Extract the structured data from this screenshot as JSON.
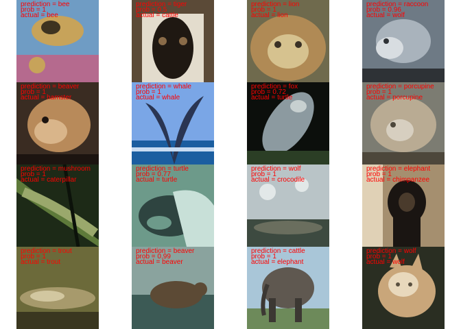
{
  "panels": [
    {
      "prediction": "prediction = bee",
      "prob": "prob = 1",
      "actual": "actual = bee",
      "subject": "bee on flowers",
      "colors": {
        "bg": "#6f9cc4",
        "a": "#c7a35a",
        "b": "#3e3320",
        "c": "#b56a8e"
      }
    },
    {
      "prediction": "prediction = tiger",
      "prob": "prob = 0.5",
      "actual": "actual = cattle",
      "subject": "cattle",
      "colors": {
        "bg": "#5b4a37",
        "a": "#e3dccd",
        "b": "#1f1812",
        "c": "#8a6b48"
      }
    },
    {
      "prediction": "prediction = lion",
      "prob": "prob = 1",
      "actual": "actual = lion",
      "subject": "lion",
      "colors": {
        "bg": "#6f6a4d",
        "a": "#b08a55",
        "b": "#3a3125",
        "c": "#d6c28f"
      }
    },
    {
      "prediction": "prediction = raccoon",
      "prob": "prob = 0.96",
      "actual": "actual = wolf",
      "subject": "wolf",
      "colors": {
        "bg": "#6e7a85",
        "a": "#a9b3bc",
        "b": "#2e3236",
        "c": "#d8dde1"
      }
    },
    {
      "prediction": "prediction = beaver",
      "prob": "prob = 1",
      "actual": "actual = hamster",
      "subject": "hamster",
      "colors": {
        "bg": "#3a2c22",
        "a": "#b88a5a",
        "b": "#1c1410",
        "c": "#d9b58a"
      }
    },
    {
      "prediction": "prediction = whale",
      "prob": "prob = 1",
      "actual": "actual = whale",
      "subject": "whale tail",
      "colors": {
        "bg": "#7aa6e6",
        "a": "#2a3552",
        "b": "#1b5ea0",
        "c": "#c8dcf2"
      }
    },
    {
      "prediction": "prediction = fox",
      "prob": "prob = 0.72",
      "actual": "actual = turtle",
      "subject": "turtle",
      "colors": {
        "bg": "#0c0f0c",
        "a": "#8c9aa0",
        "b": "#2b3e25",
        "c": "#c7d0d0"
      }
    },
    {
      "prediction": "prediction = porcupine",
      "prob": "prob = 1",
      "actual": "actual = porcupine",
      "subject": "hedgehog",
      "colors": {
        "bg": "#7c7c72",
        "a": "#b9ab93",
        "b": "#4d473b",
        "c": "#d7cfc0"
      }
    },
    {
      "prediction": "prediction = mushroom",
      "prob": "prob = 1",
      "actual": "actual = caterpillar",
      "subject": "caterpillar",
      "colors": {
        "bg": "#1d2a17",
        "a": "#9aa86c",
        "b": "#0c120a",
        "c": "#5e7a3a"
      }
    },
    {
      "prediction": "prediction = turtle",
      "prob": "prob = 0.77",
      "actual": "actual = turtle",
      "subject": "sea turtle",
      "colors": {
        "bg": "#6d9a8a",
        "a": "#2e4440",
        "b": "#c8e0d8",
        "c": "#1e2b28"
      }
    },
    {
      "prediction": "prediction = wolf",
      "prob": "prob = 1",
      "actual": "actual = crocodile",
      "subject": "crocodile",
      "colors": {
        "bg": "#b9c4c7",
        "a": "#6a6e5e",
        "b": "#3d4a40",
        "c": "#e2e8e8"
      }
    },
    {
      "prediction": "prediction = elephant",
      "prob": "prob = 1",
      "actual": "actual = chimpanzee",
      "subject": "chimpanzee",
      "colors": {
        "bg": "#a58f6f",
        "a": "#1a1512",
        "b": "#e0d1b6",
        "c": "#4a3b2c"
      }
    },
    {
      "prediction": "prediction = trout",
      "prob": "prob = 1",
      "actual": "actual = trout",
      "subject": "trout",
      "colors": {
        "bg": "#6c6a3a",
        "a": "#a79a6c",
        "b": "#3a3720",
        "c": "#d2c7a0"
      }
    },
    {
      "prediction": "prediction = beaver",
      "prob": "prob = 0.99",
      "actual": "actual = beaver",
      "subject": "beaver in water",
      "colors": {
        "bg": "#8aa39e",
        "a": "#5c4a35",
        "b": "#3c5a55",
        "c": "#c5d6d2"
      }
    },
    {
      "prediction": "prediction = cattle",
      "prob": "prob = 1",
      "actual": "actual = elephant",
      "subject": "elephant",
      "colors": {
        "bg": "#a9c6d8",
        "a": "#5f5850",
        "b": "#6d8a5a",
        "c": "#3c3833"
      }
    },
    {
      "prediction": "prediction = wolf",
      "prob": "prob = 1",
      "actual": "actual = wolf",
      "subject": "wolf",
      "colors": {
        "bg": "#2a2e22",
        "a": "#c9a67a",
        "b": "#5a5040",
        "c": "#e8d8bc"
      }
    }
  ]
}
